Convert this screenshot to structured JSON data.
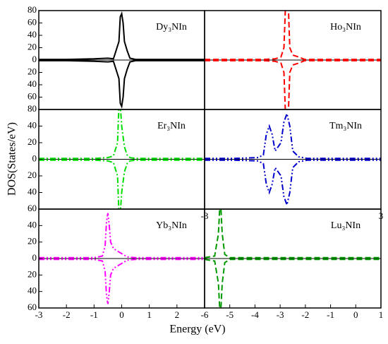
{
  "shared": {
    "xlabel": "Energy (eV)",
    "ylabel": "DOS(States/eV)"
  },
  "chart_data": [
    {
      "type": "line",
      "title": "Dy₃NIn",
      "xlim": [
        -3,
        3
      ],
      "ylim": [
        -80,
        80
      ],
      "yticks": [
        80,
        60,
        40,
        20,
        0,
        {
          "value": -20,
          "label": "20"
        },
        {
          "value": -40,
          "label": "40"
        },
        {
          "value": -60,
          "label": "60"
        },
        {
          "value": -80,
          "label": "80"
        }
      ],
      "x": [
        -3,
        -2,
        -1,
        -0.5,
        -0.3,
        -0.1,
        -0.05,
        0,
        0.05,
        0.1,
        0.2,
        0.3,
        0.5,
        1,
        2,
        3
      ],
      "series": [
        {
          "color": "#000000",
          "style": "solid",
          "values": [
            1,
            1,
            2,
            3,
            2,
            30,
            70,
            75,
            60,
            30,
            15,
            3,
            1,
            1,
            1,
            1
          ]
        },
        {
          "color": "#000000",
          "style": "solid",
          "values": [
            -1,
            -1,
            -2,
            -3,
            -2,
            -30,
            -70,
            -75,
            -60,
            -30,
            -15,
            -3,
            -1,
            -1,
            -1,
            -1
          ]
        }
      ]
    },
    {
      "type": "line",
      "title": "Ho₃NIn",
      "xlim": [
        -3,
        3
      ],
      "ylim": [
        -80,
        80
      ],
      "x": [
        -3,
        -2,
        -1,
        -0.6,
        -0.4,
        -0.3,
        -0.25,
        -0.2,
        -0.15,
        -0.1,
        0,
        0.2,
        0.4,
        1,
        2,
        3
      ],
      "series": [
        {
          "color": "#ff0000",
          "style": "dashed",
          "values": [
            1,
            1,
            1,
            2,
            5,
            20,
            85,
            85,
            85,
            20,
            8,
            5,
            1,
            1,
            1,
            1
          ]
        },
        {
          "color": "#ff0000",
          "style": "dashed",
          "values": [
            -1,
            -1,
            -1,
            -2,
            -5,
            -20,
            -85,
            -85,
            -85,
            -20,
            -8,
            -5,
            -1,
            -1,
            -1,
            -1
          ]
        }
      ]
    },
    {
      "type": "line",
      "title": "Er₃NIn",
      "xlim": [
        -3,
        3
      ],
      "ylim": [
        -60,
        60
      ],
      "yticks": [
        40,
        20,
        0,
        {
          "value": -20,
          "label": "20"
        },
        {
          "value": -40,
          "label": "40"
        },
        {
          "value": -60,
          "label": "60"
        }
      ],
      "x": [
        -3,
        -2,
        -1,
        -0.5,
        -0.3,
        -0.15,
        -0.1,
        -0.05,
        0,
        0.1,
        0.2,
        0.3,
        0.5,
        1,
        2,
        3
      ],
      "series": [
        {
          "color": "#00dd00",
          "style": "dashdot",
          "values": [
            1,
            1,
            1,
            2,
            4,
            20,
            65,
            65,
            40,
            15,
            5,
            2,
            1,
            1,
            1,
            1
          ]
        },
        {
          "color": "#00dd00",
          "style": "dashdot",
          "values": [
            -1,
            -1,
            -1,
            -2,
            -4,
            -20,
            -65,
            -65,
            -40,
            -15,
            -5,
            -2,
            -1,
            -1,
            -1,
            -1
          ]
        }
      ]
    },
    {
      "type": "line",
      "title": "Tm₃NIn",
      "xlim": [
        -3,
        3
      ],
      "ylim": [
        -60,
        60
      ],
      "xticks": [
        -3,
        3
      ],
      "x": [
        -3,
        -2,
        -1.2,
        -1,
        -0.9,
        -0.8,
        -0.7,
        -0.6,
        -0.4,
        -0.3,
        -0.2,
        -0.1,
        0,
        0.2,
        0.5,
        1,
        2,
        3
      ],
      "series": [
        {
          "color": "#0000cc",
          "style": "dashdotdot",
          "values": [
            1,
            1,
            2,
            5,
            30,
            40,
            30,
            10,
            20,
            45,
            55,
            40,
            10,
            3,
            1,
            1,
            1,
            1
          ]
        },
        {
          "color": "#0000cc",
          "style": "dashdotdot",
          "values": [
            -1,
            -1,
            -2,
            -5,
            -30,
            -40,
            -30,
            -10,
            -20,
            -45,
            -55,
            -40,
            -10,
            -3,
            -1,
            -1,
            -1,
            -1
          ]
        }
      ]
    },
    {
      "type": "line",
      "title": "Yb₃NIn",
      "xlim": [
        -3,
        3
      ],
      "ylim": [
        -60,
        60
      ],
      "yticks": [
        40,
        20,
        0,
        {
          "value": -20,
          "label": "20"
        },
        {
          "value": -40,
          "label": "40"
        },
        {
          "value": -60,
          "label": "60"
        }
      ],
      "xticks": [
        -3,
        -2,
        -1,
        0,
        1,
        2
      ],
      "x": [
        -3,
        -2,
        -1,
        -0.7,
        -0.6,
        -0.55,
        -0.5,
        -0.45,
        -0.4,
        -0.3,
        -0.1,
        0.2,
        0.5,
        1,
        2,
        3
      ],
      "series": [
        {
          "color": "#ff00ff",
          "style": "dashdotdot",
          "values": [
            1,
            1,
            1,
            3,
            15,
            45,
            55,
            40,
            20,
            12,
            8,
            2,
            1,
            1,
            1,
            1
          ]
        },
        {
          "color": "#ff00ff",
          "style": "dashdotdot",
          "values": [
            -1,
            -1,
            -1,
            -3,
            -15,
            -45,
            -55,
            -40,
            -20,
            -12,
            -8,
            -2,
            -1,
            -1,
            -1,
            -1
          ]
        }
      ]
    },
    {
      "type": "line",
      "title": "Lu₃NIn",
      "xlim": [
        -6,
        1
      ],
      "ylim": [
        -60,
        60
      ],
      "xticks": [
        -6,
        -5,
        -4,
        -3,
        -2,
        -1,
        0,
        1
      ],
      "x": [
        -6,
        -5.6,
        -5.45,
        -5.4,
        -5.35,
        -5.3,
        -5.2,
        -5,
        -4,
        -3,
        -2,
        -1,
        0,
        1
      ],
      "series": [
        {
          "color": "#009900",
          "style": "dashed",
          "values": [
            1,
            3,
            30,
            60,
            60,
            30,
            5,
            1,
            1,
            1,
            1,
            1,
            1,
            1
          ]
        },
        {
          "color": "#009900",
          "style": "dashed",
          "values": [
            -1,
            -3,
            -30,
            -60,
            -60,
            -30,
            -5,
            -1,
            -1,
            -1,
            -1,
            -1,
            -1,
            -1
          ]
        }
      ]
    }
  ]
}
